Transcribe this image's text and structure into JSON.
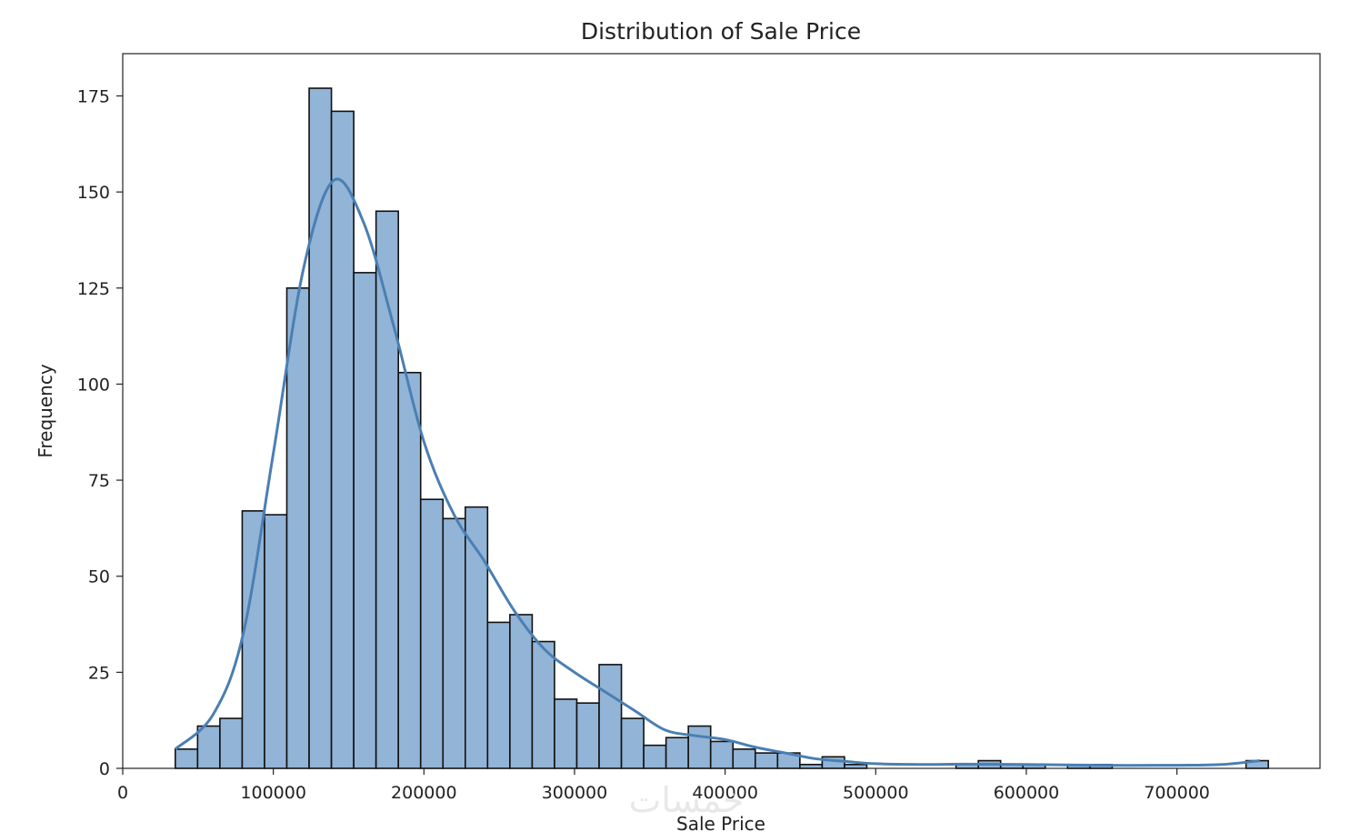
{
  "chart_data": {
    "type": "bar",
    "title": "Distribution of Sale Price",
    "xlabel": "Sale Price",
    "ylabel": "Frequency",
    "xlim": [
      0,
      795000
    ],
    "ylim": [
      0,
      186
    ],
    "x_ticks": [
      0,
      100000,
      200000,
      300000,
      400000,
      500000,
      600000,
      700000
    ],
    "y_ticks": [
      0,
      25,
      50,
      75,
      100,
      125,
      150,
      175
    ],
    "grid": false,
    "legend": "none",
    "bins": {
      "start": 34900,
      "width": 14812,
      "counts": [
        5,
        11,
        13,
        67,
        66,
        125,
        177,
        171,
        129,
        145,
        103,
        70,
        65,
        68,
        38,
        40,
        33,
        18,
        17,
        27,
        13,
        6,
        8,
        11,
        7,
        5,
        4,
        4,
        1,
        3,
        1,
        0,
        0,
        0,
        0,
        1,
        2,
        1,
        1,
        0,
        1,
        1,
        0,
        0,
        0,
        0,
        0,
        0,
        2
      ]
    },
    "kde": {
      "x": [
        34900,
        60000,
        80000,
        100000,
        120000,
        140000,
        160000,
        180000,
        200000,
        220000,
        240000,
        260000,
        280000,
        300000,
        320000,
        340000,
        360000,
        380000,
        400000,
        420000,
        440000,
        460000,
        480000,
        500000,
        530000,
        560000,
        600000,
        650000,
        700000,
        730000,
        755000
      ],
      "y": [
        5,
        14,
        35,
        82,
        130,
        153,
        142,
        115,
        85,
        66,
        54,
        41,
        31,
        25,
        20,
        15,
        10,
        8.5,
        7.5,
        5.5,
        4,
        2.5,
        1.8,
        1.2,
        1,
        1.1,
        1,
        0.8,
        0.8,
        1,
        2
      ]
    },
    "colors": {
      "bar_fill": "#92b4d6",
      "bar_edge": "#111111",
      "kde_line": "#4a7fb3",
      "axis": "#222222"
    }
  },
  "watermark": "خمسات"
}
